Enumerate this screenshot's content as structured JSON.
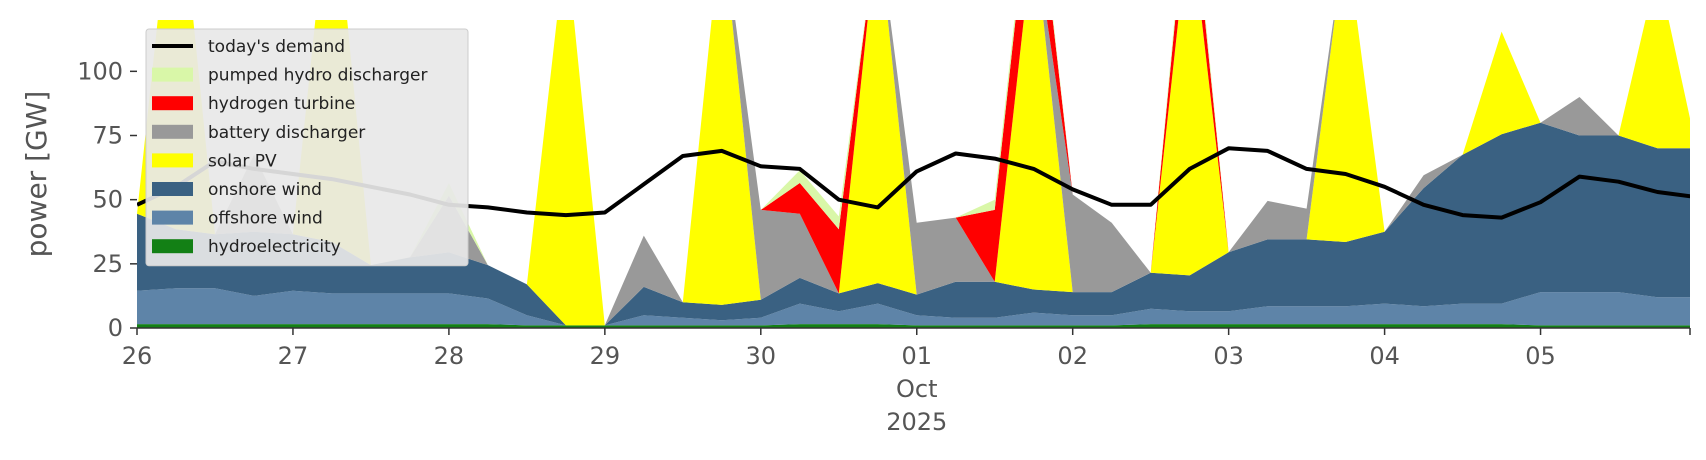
{
  "chart_data": {
    "type": "area",
    "title": "",
    "xlabel": "",
    "ylabel": "power [GW]",
    "ylim": [
      0,
      120
    ],
    "yticks": [
      0,
      25,
      50,
      75,
      100
    ],
    "xlim": [
      "2025-09-26T00:00",
      "2025-10-05T23:00"
    ],
    "xticks": [
      {
        "x": "2025-09-26",
        "label": "26"
      },
      {
        "x": "2025-09-27",
        "label": "27"
      },
      {
        "x": "2025-09-28",
        "label": "28"
      },
      {
        "x": "2025-09-29",
        "label": "29"
      },
      {
        "x": "2025-09-30",
        "label": "30"
      },
      {
        "x": "2025-10-01",
        "label": "01",
        "sublabel": "Oct",
        "sublabel2": "2025"
      },
      {
        "x": "2025-10-02",
        "label": "02"
      },
      {
        "x": "2025-10-03",
        "label": "03"
      },
      {
        "x": "2025-10-04",
        "label": "04"
      },
      {
        "x": "2025-10-05",
        "label": "05"
      }
    ],
    "legend_position": "top-left",
    "stack_order": [
      "hydroelectricity",
      "offshore wind",
      "onshore wind",
      "solar PV",
      "battery discharger",
      "hydrogen turbine",
      "pumped hydro discharger"
    ],
    "legend": [
      {
        "label": "today's demand",
        "kind": "line",
        "color": "#000000"
      },
      {
        "label": "pumped hydro discharger",
        "kind": "area",
        "color": "#d9f7a8"
      },
      {
        "label": "hydrogen turbine",
        "kind": "area",
        "color": "#ff0000"
      },
      {
        "label": "battery discharger",
        "kind": "area",
        "color": "#999999"
      },
      {
        "label": "solar PV",
        "kind": "area",
        "color": "#ffff00"
      },
      {
        "label": "onshore wind",
        "kind": "area",
        "color": "#3a6182"
      },
      {
        "label": "offshore wind",
        "kind": "area",
        "color": "#5e84a8"
      },
      {
        "label": "hydroelectricity",
        "kind": "area",
        "color": "#138015"
      }
    ],
    "series": [
      {
        "name": "hydroelectricity",
        "color": "#138015",
        "values": [
          1.5,
          1.5,
          1.5,
          1.5,
          1.5,
          1.5,
          1.5,
          1.5,
          1.5,
          1.5,
          1.0,
          1.0,
          1.0,
          1.0,
          1.0,
          1.0,
          1.0,
          1.5,
          1.5,
          1.5,
          1.0,
          1.0,
          1.0,
          1.0,
          1.0,
          1.0,
          1.5,
          1.5,
          1.5,
          1.5,
          1.5,
          1.5,
          1.5,
          1.5,
          1.5,
          1.5,
          1.0,
          1.0,
          1.0,
          1.0,
          1.0
        ]
      },
      {
        "name": "offshore wind",
        "color": "#5e84a8",
        "values": [
          13,
          14,
          14,
          11,
          13,
          12,
          12,
          12,
          12,
          10,
          4,
          0,
          0,
          4,
          3,
          2,
          3,
          8,
          5,
          8,
          4,
          3,
          3,
          5,
          4,
          4,
          6,
          5,
          5,
          7,
          7,
          7,
          8,
          7,
          8,
          8,
          13,
          13,
          13,
          11,
          11
        ]
      },
      {
        "name": "onshore wind",
        "color": "#3a6182",
        "values": [
          30,
          23,
          21,
          25,
          22,
          20,
          11,
          14,
          16,
          13,
          12,
          0,
          0,
          11,
          6,
          6,
          7,
          10,
          7,
          8,
          8,
          14,
          14,
          9,
          9,
          9,
          14,
          14,
          23,
          26,
          26,
          25,
          28,
          46,
          58,
          66,
          66,
          61,
          61,
          58,
          58
        ]
      },
      {
        "name": "solar PV",
        "color": "#ffff00",
        "values": [
          0,
          148,
          0,
          0,
          0,
          148,
          0,
          0,
          0,
          0,
          0,
          150,
          0,
          0,
          0,
          150,
          0,
          0,
          0,
          140,
          0,
          0,
          0,
          140,
          0,
          0,
          0,
          140,
          0,
          0,
          0,
          120,
          0,
          0,
          0,
          40,
          0,
          0,
          0,
          70,
          0
        ]
      },
      {
        "name": "battery discharger",
        "color": "#999999",
        "values": [
          0,
          0,
          0,
          30,
          0,
          0,
          0,
          0,
          22,
          0,
          0,
          0,
          0,
          20,
          0,
          0,
          35,
          25,
          0,
          0,
          28,
          25,
          0,
          0,
          38,
          27,
          0,
          0,
          0,
          15,
          12,
          0,
          0,
          5,
          0,
          0,
          0,
          15,
          0,
          0,
          0
        ]
      },
      {
        "name": "hydrogen turbine",
        "color": "#ff0000",
        "values": [
          0,
          0,
          0,
          0,
          0,
          0,
          0,
          0,
          0,
          0,
          0,
          0,
          0,
          0,
          0,
          0,
          0,
          12,
          25,
          0,
          0,
          0,
          28,
          30,
          0,
          0,
          0,
          18,
          0,
          0,
          0,
          0,
          0,
          0,
          0,
          0,
          0,
          0,
          0,
          0,
          0
        ]
      },
      {
        "name": "pumped hydro discharger",
        "color": "#d9f7a8",
        "values": [
          0,
          0,
          0,
          0,
          0,
          0,
          0,
          0,
          5,
          0,
          0,
          0,
          0,
          0,
          0,
          0,
          0,
          5,
          5,
          0,
          0,
          0,
          4,
          4,
          0,
          0,
          0,
          5,
          0,
          0,
          0,
          0,
          0,
          0,
          0,
          0,
          0,
          0,
          0,
          0,
          0
        ]
      },
      {
        "name": "today's demand",
        "color": "#000000",
        "kind": "line",
        "values": [
          48,
          55,
          65,
          62,
          60,
          58,
          55,
          52,
          48,
          47,
          45,
          44,
          45,
          56,
          67,
          69,
          63,
          62,
          50,
          47,
          61,
          68,
          66,
          62,
          54,
          48,
          48,
          62,
          70,
          69,
          62,
          60,
          55,
          48,
          44,
          43,
          49,
          59,
          57,
          53,
          51
        ]
      }
    ],
    "x_step_hours": 6,
    "x_start": "2025-09-26T00:00"
  }
}
